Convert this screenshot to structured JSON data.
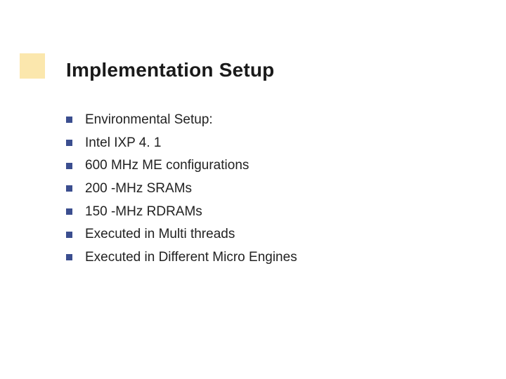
{
  "title": "Implementation Setup",
  "accent_color": "#f2b400",
  "bullet_color": "#3b4e8f",
  "text_color": "#222222",
  "title_color": "#1a1a1a",
  "title_fontsize": 28,
  "item_fontsize": 19,
  "items": [
    "Environmental Setup:",
    "Intel IXP 4. 1",
    "600 MHz ME configurations",
    "200 -MHz SRAMs",
    "150 -MHz RDRAMs",
    "Executed in Multi threads",
    "Executed in Different Micro Engines"
  ]
}
